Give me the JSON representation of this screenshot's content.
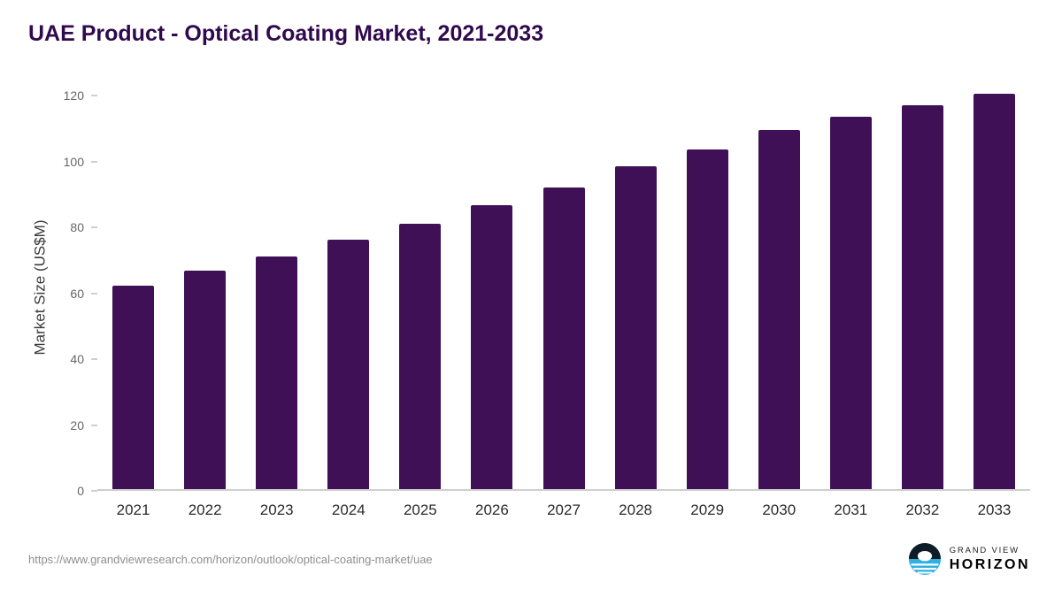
{
  "header": {
    "title": "UAE Product - Optical Coating Market, 2021-2033",
    "title_color": "#30094e"
  },
  "chart_data": {
    "type": "bar",
    "title": "UAE Product - Optical Coating Market, 2021-2033",
    "xlabel": "",
    "ylabel": "Market Size (US$M)",
    "categories": [
      "2021",
      "2022",
      "2023",
      "2024",
      "2025",
      "2026",
      "2027",
      "2028",
      "2029",
      "2030",
      "2031",
      "2032",
      "2033"
    ],
    "values": [
      62,
      66.5,
      71,
      76,
      81,
      86.5,
      92,
      98.5,
      103.5,
      109.5,
      113.5,
      117,
      120.5
    ],
    "ylim": [
      0,
      120
    ],
    "yticks": [
      0,
      20,
      40,
      60,
      80,
      100,
      120
    ],
    "grid": false,
    "legend": false,
    "bar_color": "#3f1056",
    "axis_color": "#cfcfcf"
  },
  "footer": {
    "source_url": "https://www.grandviewresearch.com/horizon/outlook/optical-coating-market/uae",
    "logo": {
      "top": "GRAND VIEW",
      "bottom": "HORIZON",
      "accent_color": "#2fb0e3",
      "dark_color": "#0e1c28"
    }
  }
}
